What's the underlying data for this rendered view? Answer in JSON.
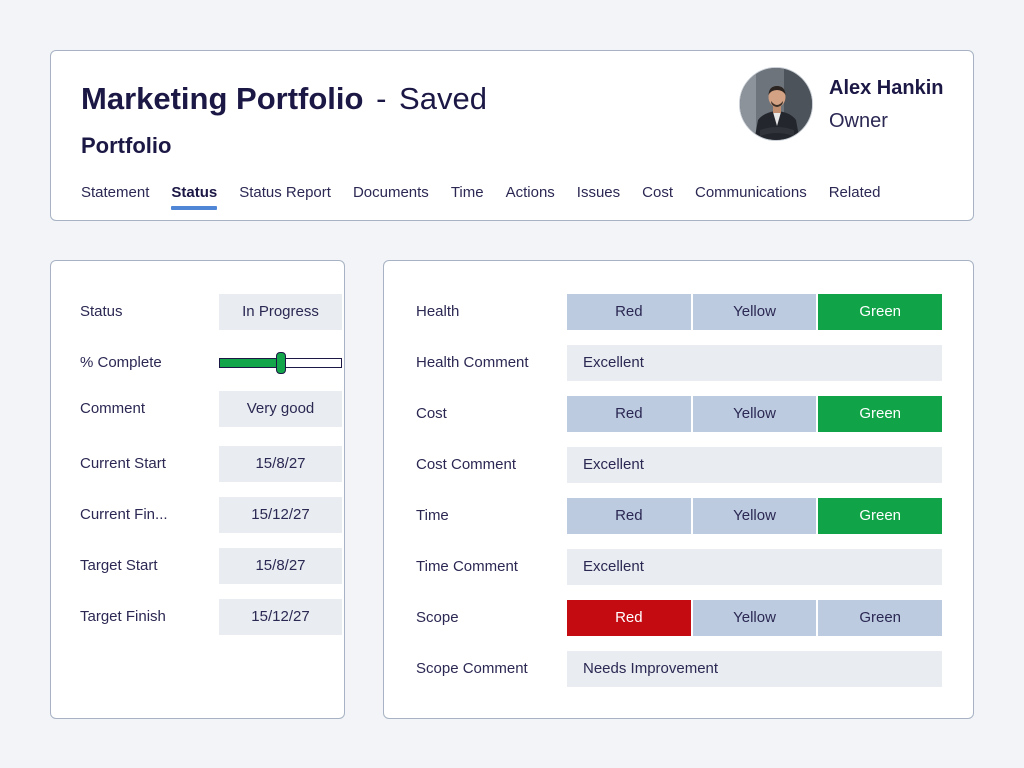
{
  "header": {
    "title": "Marketing Portfolio",
    "title_separator": "-",
    "save_state": "Saved",
    "subtitle": "Portfolio",
    "tabs": [
      {
        "label": "Statement"
      },
      {
        "label": "Status"
      },
      {
        "label": "Status Report"
      },
      {
        "label": "Documents"
      },
      {
        "label": "Time"
      },
      {
        "label": "Actions"
      },
      {
        "label": "Issues"
      },
      {
        "label": "Cost"
      },
      {
        "label": "Communications"
      },
      {
        "label": "Related"
      }
    ],
    "active_tab": "Status",
    "owner": {
      "name": "Alex Hankin",
      "role": "Owner",
      "avatar_icon": "person-photo-icon"
    }
  },
  "status_panel": {
    "status": {
      "label": "Status",
      "value": "In Progress"
    },
    "percent_complete": {
      "label": "% Complete",
      "fraction": 0.5
    },
    "comment": {
      "label": "Comment",
      "value": "Very good"
    },
    "current_start": {
      "label": "Current Start",
      "value": "15/8/27"
    },
    "current_finish": {
      "label": "Current Fin...",
      "value": "15/12/27"
    },
    "target_start": {
      "label": "Target Start",
      "value": "15/8/27"
    },
    "target_finish": {
      "label": "Target Finish",
      "value": "15/12/27"
    }
  },
  "rag_panel": {
    "options": [
      "Red",
      "Yellow",
      "Green"
    ],
    "health": {
      "label": "Health",
      "selected": "Green"
    },
    "health_comment": {
      "label": "Health Comment",
      "value": "Excellent"
    },
    "cost": {
      "label": "Cost",
      "selected": "Green"
    },
    "cost_comment": {
      "label": "Cost Comment",
      "value": "Excellent"
    },
    "time": {
      "label": "Time",
      "selected": "Green"
    },
    "time_comment": {
      "label": "Time Comment",
      "value": "Excellent"
    },
    "scope": {
      "label": "Scope",
      "selected": "Red"
    },
    "scope_comment": {
      "label": "Scope Comment",
      "value": "Needs Improvement"
    }
  },
  "colors": {
    "background": "#f2f4f7",
    "text_dark": "#1c1845",
    "tab_underline": "#4f86d6",
    "rag_unselected": "#bccbdf",
    "rag_green": "#10a347",
    "rag_red": "#c40b12",
    "field_bg": "#e9ecf0",
    "slider_fill": "#13a549"
  }
}
